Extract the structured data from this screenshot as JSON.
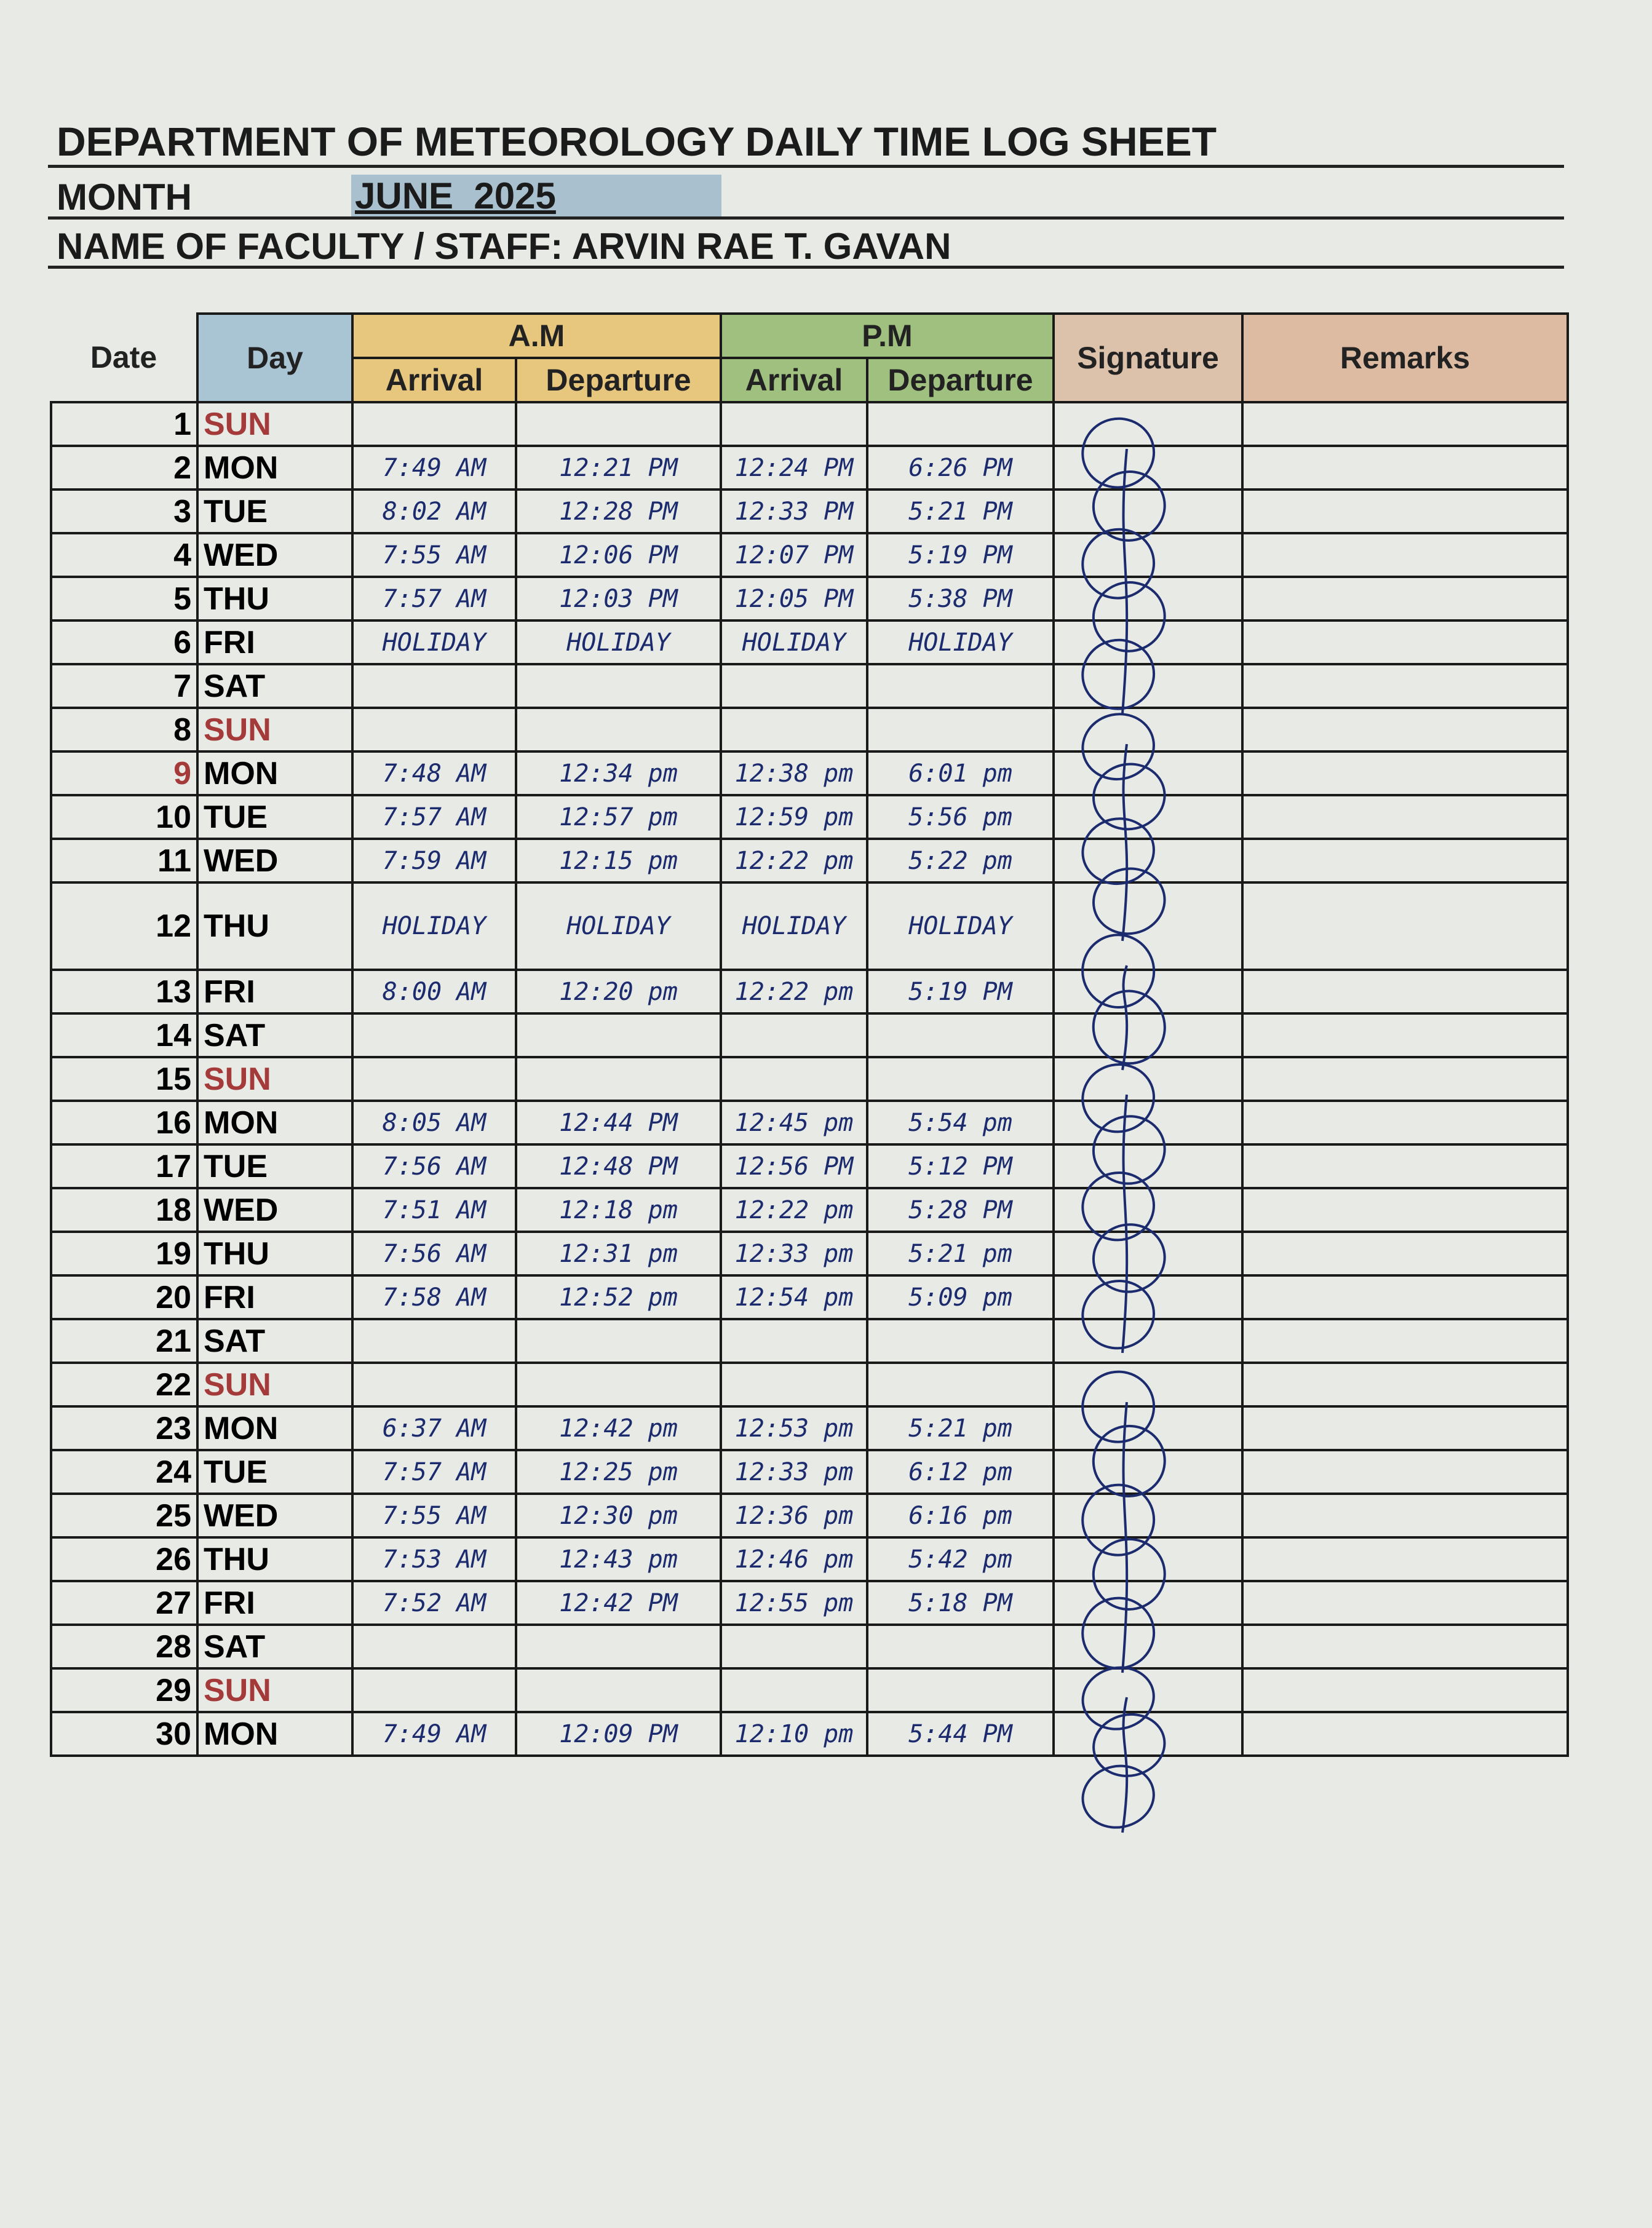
{
  "header": {
    "title": "DEPARTMENT OF METEOROLOGY DAILY TIME LOG SHEET",
    "month_label": "MONTH",
    "month": "JUNE  2025",
    "name": "NAME OF FACULTY / STAFF: ARVIN RAE T. GAVAN",
    "month_highlight": "#a9c1cf"
  },
  "table": {
    "headers": {
      "date": "Date",
      "day": "Day",
      "am": "A.M",
      "pm": "P.M",
      "am_arrival": "Arrival",
      "am_departure": "Departure",
      "pm_arrival": "Arrival",
      "pm_departure": "Departure",
      "signature": "Signature",
      "remarks": "Remarks"
    },
    "header_colors": {
      "day": "#a9c4d3",
      "am": "#e7c67e",
      "pm": "#9fc07f",
      "signature": "#dcc1ab",
      "remarks": "#ddbba3"
    },
    "rows": [
      {
        "date": 1,
        "day": "SUN",
        "day_color": "#a53a3a"
      },
      {
        "date": 2,
        "day": "MON",
        "am_arrival": "7:49 AM",
        "am_departure": "12:21 PM",
        "pm_arrival": "12:24 PM",
        "pm_departure": "6:26 PM"
      },
      {
        "date": 3,
        "day": "TUE",
        "am_arrival": "8:02 AM",
        "am_departure": "12:28 PM",
        "pm_arrival": "12:33 PM",
        "pm_departure": "5:21 PM"
      },
      {
        "date": 4,
        "day": "WED",
        "am_arrival": "7:55 AM",
        "am_departure": "12:06 PM",
        "pm_arrival": "12:07 PM",
        "pm_departure": "5:19 PM"
      },
      {
        "date": 5,
        "day": "THU",
        "am_arrival": "7:57 AM",
        "am_departure": "12:03 PM",
        "pm_arrival": "12:05 PM",
        "pm_departure": "5:38 PM"
      },
      {
        "date": 6,
        "day": "FRI",
        "am_arrival": "HOLIDAY",
        "am_departure": "HOLIDAY",
        "pm_arrival": "HOLIDAY",
        "pm_departure": "HOLIDAY"
      },
      {
        "date": 7,
        "day": "SAT"
      },
      {
        "date": 8,
        "day": "SUN",
        "day_color": "#a53a3a"
      },
      {
        "date": 9,
        "day": "MON",
        "date_color": "#a53a3a",
        "am_arrival": "7:48 AM",
        "am_departure": "12:34 pm",
        "pm_arrival": "12:38 pm",
        "pm_departure": "6:01 pm"
      },
      {
        "date": 10,
        "day": "TUE",
        "am_arrival": "7:57 AM",
        "am_departure": "12:57 pm",
        "pm_arrival": "12:59 pm",
        "pm_departure": "5:56 pm"
      },
      {
        "date": 11,
        "day": "WED",
        "am_arrival": "7:59 AM",
        "am_departure": "12:15 pm",
        "pm_arrival": "12:22 pm",
        "pm_departure": "5:22 pm"
      },
      {
        "date": 12,
        "day": "THU",
        "am_arrival": "HOLIDAY",
        "am_departure": "HOLIDAY",
        "pm_arrival": "HOLIDAY",
        "pm_departure": "HOLIDAY"
      },
      {
        "date": 13,
        "day": "FRI",
        "am_arrival": "8:00 AM",
        "am_departure": "12:20 pm",
        "pm_arrival": "12:22 pm",
        "pm_departure": "5:19 PM"
      },
      {
        "date": 14,
        "day": "SAT"
      },
      {
        "date": 15,
        "day": "SUN",
        "day_color": "#a53a3a"
      },
      {
        "date": 16,
        "day": "MON",
        "am_arrival": "8:05 AM",
        "am_departure": "12:44 PM",
        "pm_arrival": "12:45 pm",
        "pm_departure": "5:54 pm"
      },
      {
        "date": 17,
        "day": "TUE",
        "am_arrival": "7:56 AM",
        "am_departure": "12:48 PM",
        "pm_arrival": "12:56 PM",
        "pm_departure": "5:12 PM"
      },
      {
        "date": 18,
        "day": "WED",
        "am_arrival": "7:51 AM",
        "am_departure": "12:18 pm",
        "pm_arrival": "12:22 pm",
        "pm_departure": "5:28 PM"
      },
      {
        "date": 19,
        "day": "THU",
        "am_arrival": "7:56 AM",
        "am_departure": "12:31 pm",
        "pm_arrival": "12:33 pm",
        "pm_departure": "5:21 pm"
      },
      {
        "date": 20,
        "day": "FRI",
        "am_arrival": "7:58 AM",
        "am_departure": "12:52 pm",
        "pm_arrival": "12:54 pm",
        "pm_departure": "5:09 pm"
      },
      {
        "date": 21,
        "day": "SAT"
      },
      {
        "date": 22,
        "day": "SUN",
        "day_color": "#a53a3a"
      },
      {
        "date": 23,
        "day": "MON",
        "am_arrival": "6:37 AM",
        "am_departure": "12:42 pm",
        "pm_arrival": "12:53 pm",
        "pm_departure": "5:21 pm"
      },
      {
        "date": 24,
        "day": "TUE",
        "am_arrival": "7:57 AM",
        "am_departure": "12:25 pm",
        "pm_arrival": "12:33 pm",
        "pm_departure": "6:12 pm"
      },
      {
        "date": 25,
        "day": "WED",
        "am_arrival": "7:55 AM",
        "am_departure": "12:30 pm",
        "pm_arrival": "12:36 pm",
        "pm_departure": "6:16 pm"
      },
      {
        "date": 26,
        "day": "THU",
        "am_arrival": "7:53 AM",
        "am_departure": "12:43 pm",
        "pm_arrival": "12:46 pm",
        "pm_departure": "5:42 pm"
      },
      {
        "date": 27,
        "day": "FRI",
        "am_arrival": "7:52 AM",
        "am_departure": "12:42 PM",
        "pm_arrival": "12:55 pm",
        "pm_departure": "5:18 PM"
      },
      {
        "date": 28,
        "day": "SAT"
      },
      {
        "date": 29,
        "day": "SUN",
        "day_color": "#a53a3a"
      },
      {
        "date": 30,
        "day": "MON",
        "am_arrival": "7:49 AM",
        "am_departure": "12:09 PM",
        "pm_arrival": "12:10 pm",
        "pm_departure": "5:44 PM"
      }
    ]
  }
}
